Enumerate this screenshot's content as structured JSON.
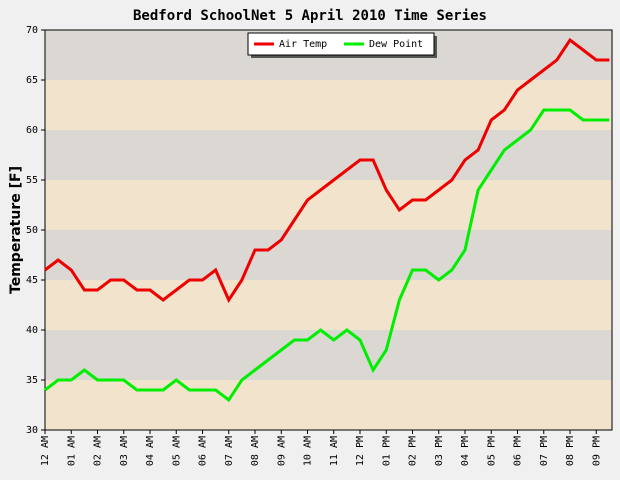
{
  "chart_data": {
    "type": "line",
    "title": "Bedford SchoolNet 5 April 2010 Time Series",
    "y_label": "Temperature [F]",
    "x": [
      0,
      0.5,
      1,
      1.5,
      2,
      2.5,
      3,
      3.5,
      4,
      4.5,
      5,
      5.5,
      6,
      6.5,
      7,
      7.5,
      8,
      8.5,
      9,
      9.5,
      10,
      10.5,
      11,
      11.5,
      12,
      12.5,
      13,
      13.5,
      14,
      14.5,
      15,
      15.5,
      16,
      16.5,
      17,
      17.5,
      18,
      18.5,
      19,
      19.5,
      20,
      20.5,
      21,
      21.5
    ],
    "series": [
      {
        "name": "Air Temp",
        "color": "#ee0000",
        "values": [
          46,
          47,
          46,
          44,
          44,
          45,
          45,
          44,
          44,
          43,
          44,
          45,
          45,
          46,
          43,
          45,
          48,
          48,
          49,
          51,
          53,
          54,
          55,
          56,
          57,
          57,
          54,
          52,
          53,
          53,
          54,
          55,
          57,
          58,
          61,
          62,
          64,
          65,
          66,
          67,
          69,
          68,
          67,
          67
        ]
      },
      {
        "name": "Dew Point",
        "color": "#00ee00",
        "values": [
          34,
          35,
          35,
          36,
          35,
          35,
          35,
          34,
          34,
          34,
          35,
          34,
          34,
          34,
          33,
          35,
          36,
          37,
          38,
          39,
          39,
          40,
          39,
          40,
          39,
          36,
          38,
          43,
          46,
          46,
          45,
          46,
          48,
          54,
          56,
          58,
          59,
          60,
          62,
          62,
          62,
          61,
          61,
          61
        ]
      }
    ],
    "xlim": [
      0,
      21.6
    ],
    "xticks": [
      {
        "value": 0,
        "label": "12 AM"
      },
      {
        "value": 1,
        "label": "01 AM"
      },
      {
        "value": 2,
        "label": "02 AM"
      },
      {
        "value": 3,
        "label": "03 AM"
      },
      {
        "value": 4,
        "label": "04 AM"
      },
      {
        "value": 5,
        "label": "05 AM"
      },
      {
        "value": 6,
        "label": "06 AM"
      },
      {
        "value": 7,
        "label": "07 AM"
      },
      {
        "value": 8,
        "label": "08 AM"
      },
      {
        "value": 9,
        "label": "09 AM"
      },
      {
        "value": 10,
        "label": "10 AM"
      },
      {
        "value": 11,
        "label": "11 AM"
      },
      {
        "value": 12,
        "label": "12 PM"
      },
      {
        "value": 13,
        "label": "01 PM"
      },
      {
        "value": 14,
        "label": "02 PM"
      },
      {
        "value": 15,
        "label": "03 PM"
      },
      {
        "value": 16,
        "label": "04 PM"
      },
      {
        "value": 17,
        "label": "05 PM"
      },
      {
        "value": 18,
        "label": "06 PM"
      },
      {
        "value": 19,
        "label": "07 PM"
      },
      {
        "value": 20,
        "label": "08 PM"
      },
      {
        "value": 21,
        "label": "09 PM"
      }
    ],
    "ylim": [
      30,
      70
    ],
    "yticks": [
      30,
      35,
      40,
      45,
      50,
      55,
      60,
      65,
      70
    ],
    "band_colors": [
      "#f2e4cc",
      "#dbd7d3"
    ],
    "legend": "top"
  }
}
